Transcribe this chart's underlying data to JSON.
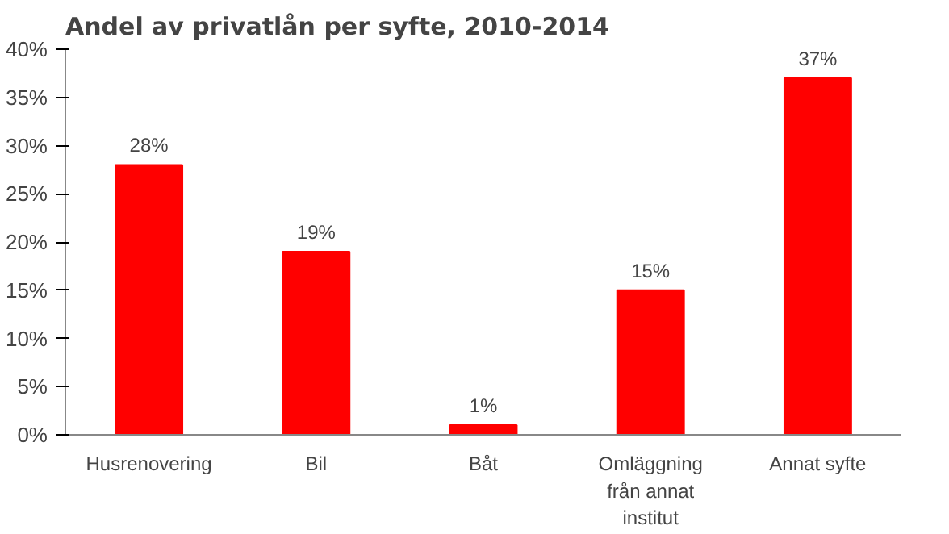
{
  "chart_data": {
    "type": "bar",
    "title": "Andel av privatlån per syfte, 2010-2014",
    "categories": [
      "Husrenovering",
      "Bil",
      "Båt",
      "Omläggning från annat institut",
      "Annat syfte"
    ],
    "values": [
      28,
      19,
      1,
      15,
      37
    ],
    "color": "#ff0000",
    "data_labels": true,
    "value_labels": [
      "28%",
      "19%",
      "1%",
      "15%",
      "37%"
    ],
    "ylim": [
      0,
      40
    ],
    "yticks": [
      {
        "value": 0,
        "label": "0%"
      },
      {
        "value": 5,
        "label": "5%"
      },
      {
        "value": 10,
        "label": "10%"
      },
      {
        "value": 15,
        "label": "15%"
      },
      {
        "value": 20,
        "label": "20%"
      },
      {
        "value": 25,
        "label": "25%"
      },
      {
        "value": 30,
        "label": "30%"
      },
      {
        "value": 35,
        "label": "35%"
      },
      {
        "value": 40,
        "label": "40%"
      }
    ],
    "grid": false
  }
}
